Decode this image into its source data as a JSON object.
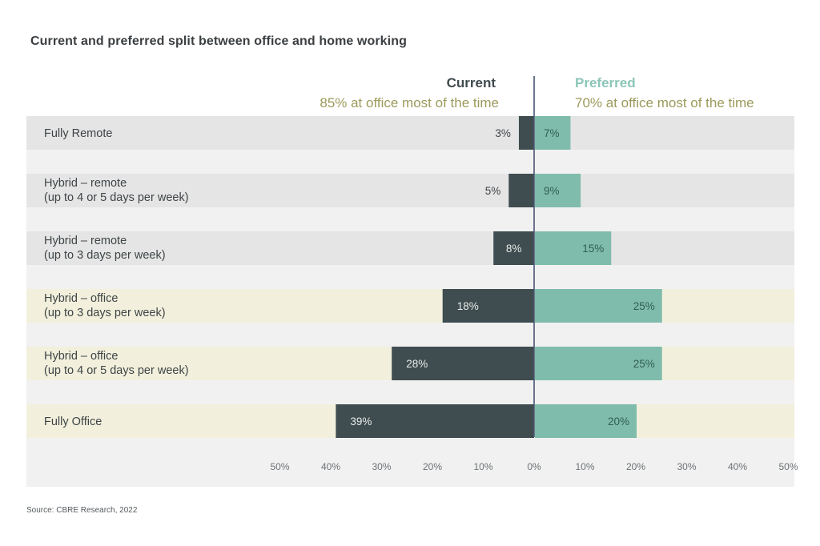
{
  "title": "Current and preferred split between office and home working",
  "headers": {
    "current": {
      "label": "Current",
      "subtitle": "85% at office most of the time"
    },
    "preferred": {
      "label": "Preferred",
      "subtitle": "70% at office most of the time"
    }
  },
  "source": "Source: CBRE Research, 2022",
  "colors": {
    "current_bar": "#3f4d50",
    "preferred_bar": "#80bcac",
    "current_label_light": "#e9ecea",
    "current_label_dark": "#3e4447",
    "preferred_label": "#2e5e52",
    "remote_band": "#e5e5e5",
    "office_band": "#f2f0dc",
    "axis_line": "#4a5573"
  },
  "chart_data": {
    "type": "bar",
    "orientation": "horizontal-diverging",
    "title": "Current and preferred split between office and home working",
    "xlabel": "",
    "ylabel": "",
    "xlim": [
      -50,
      50
    ],
    "x_ticks": [
      "50%",
      "40%",
      "30%",
      "20%",
      "10%",
      "0%",
      "10%",
      "20%",
      "30%",
      "40%",
      "50%"
    ],
    "grid": false,
    "legend": "top (column headers: Current on left, Preferred on right)",
    "categories": [
      "Fully Remote",
      "Hybrid – remote\n(up to 4 or 5 days per week)",
      "Hybrid – remote\n(up to 3 days per week)",
      "Hybrid – office\n(up to 3 days per week)",
      "Hybrid – office\n(up to 4 or 5 days per week)",
      "Fully Office"
    ],
    "category_group": [
      "remote",
      "remote",
      "remote",
      "office",
      "office",
      "office"
    ],
    "series": [
      {
        "name": "Current",
        "direction": "left",
        "values": [
          3,
          5,
          8,
          18,
          28,
          39
        ],
        "labels": [
          "3%",
          "5%",
          "8%",
          "18%",
          "28%",
          "39%"
        ]
      },
      {
        "name": "Preferred",
        "direction": "right",
        "values": [
          7,
          9,
          15,
          25,
          25,
          20
        ],
        "labels": [
          "7%",
          "9%",
          "15%",
          "25%",
          "25%",
          "20%"
        ]
      }
    ]
  }
}
